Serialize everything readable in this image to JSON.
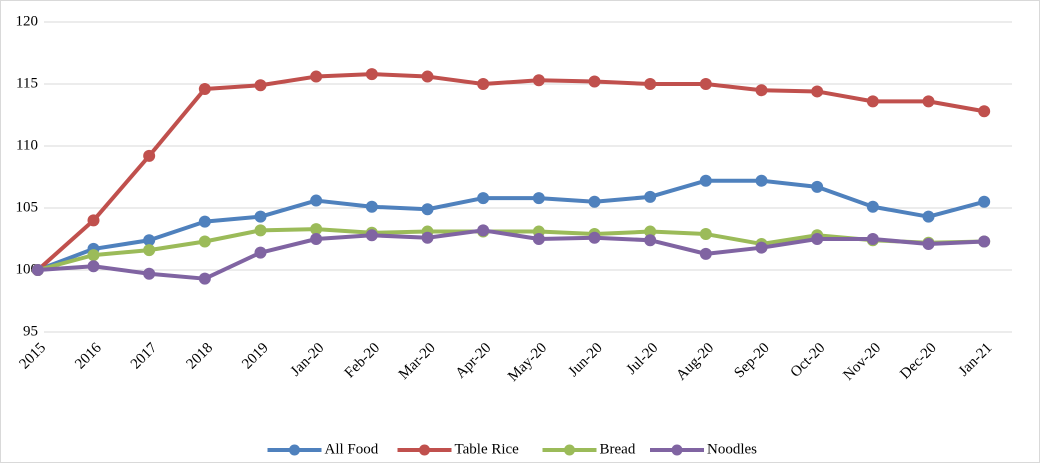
{
  "chart_data": {
    "type": "line",
    "categories": [
      "2015",
      "2016",
      "2017",
      "2018",
      "2019",
      "Jan-20",
      "Feb-20",
      "Mar-20",
      "Apr-20",
      "May-20",
      "Jun-20",
      "Jul-20",
      "Aug-20",
      "Sep-20",
      "Oct-20",
      "Nov-20",
      "Dec-20",
      "Jan-21"
    ],
    "series": [
      {
        "name": "All Food",
        "color": "#4f81bd",
        "values": [
          100,
          101.7,
          102.4,
          103.9,
          104.3,
          105.6,
          105.1,
          104.9,
          105.8,
          105.8,
          105.5,
          105.9,
          107.2,
          107.2,
          106.7,
          105.1,
          104.3,
          105.5
        ]
      },
      {
        "name": "Table Rice",
        "color": "#c0504d",
        "values": [
          100,
          104,
          109.2,
          114.6,
          114.9,
          115.6,
          115.8,
          115.6,
          115.0,
          115.3,
          115.2,
          115.0,
          115.0,
          114.5,
          114.4,
          113.6,
          113.6,
          112.8
        ]
      },
      {
        "name": "Bread",
        "color": "#9bbb59",
        "values": [
          100,
          101.2,
          101.6,
          102.3,
          103.2,
          103.3,
          103.0,
          103.1,
          103.1,
          103.1,
          102.9,
          103.1,
          102.9,
          102.1,
          102.8,
          102.4,
          102.2,
          102.3
        ]
      },
      {
        "name": "Noodles",
        "color": "#8064a2",
        "values": [
          100,
          100.3,
          99.7,
          99.3,
          101.4,
          102.5,
          102.8,
          102.6,
          103.2,
          102.5,
          102.6,
          102.4,
          101.3,
          101.8,
          102.5,
          102.5,
          102.1,
          102.3
        ]
      }
    ],
    "ylim": [
      95,
      120
    ],
    "yticks": [
      95,
      100,
      105,
      110,
      115,
      120
    ],
    "grid": true,
    "legend": "bottom"
  }
}
